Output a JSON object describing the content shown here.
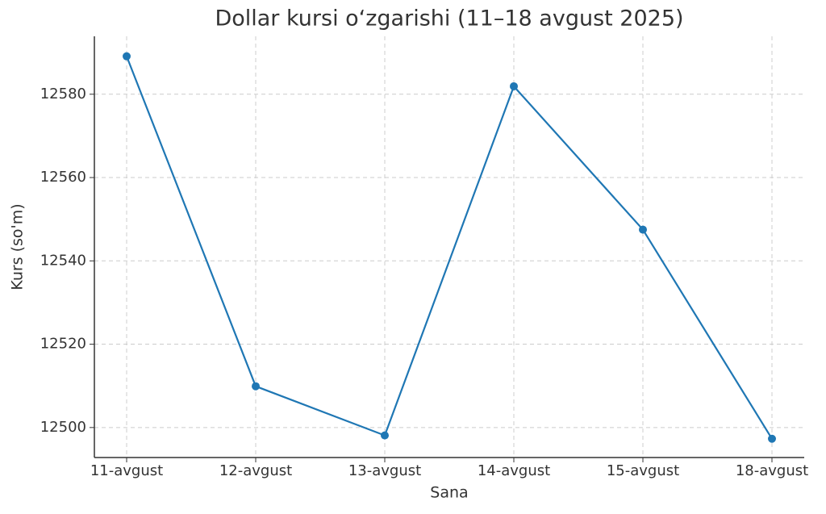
{
  "chart_data": {
    "type": "line",
    "title": "Dollar kursi o‘zgarishi (11–18 avgust 2025)",
    "x_label": "Sana",
    "y_label": "Kurs (so'm)",
    "categories": [
      "11-avgust",
      "12-avgust",
      "13-avgust",
      "14-avgust",
      "15-avgust",
      "18-avgust"
    ],
    "series": [
      {
        "color": "#1f77b4",
        "values": [
          12589.1,
          12509.9,
          12498.1,
          12581.9,
          12547.5,
          12497.3
        ]
      }
    ],
    "ylim": [
      12492.8,
      12593.9
    ],
    "yticks": [
      12500,
      12520,
      12540,
      12560,
      12580
    ],
    "grid": true
  }
}
